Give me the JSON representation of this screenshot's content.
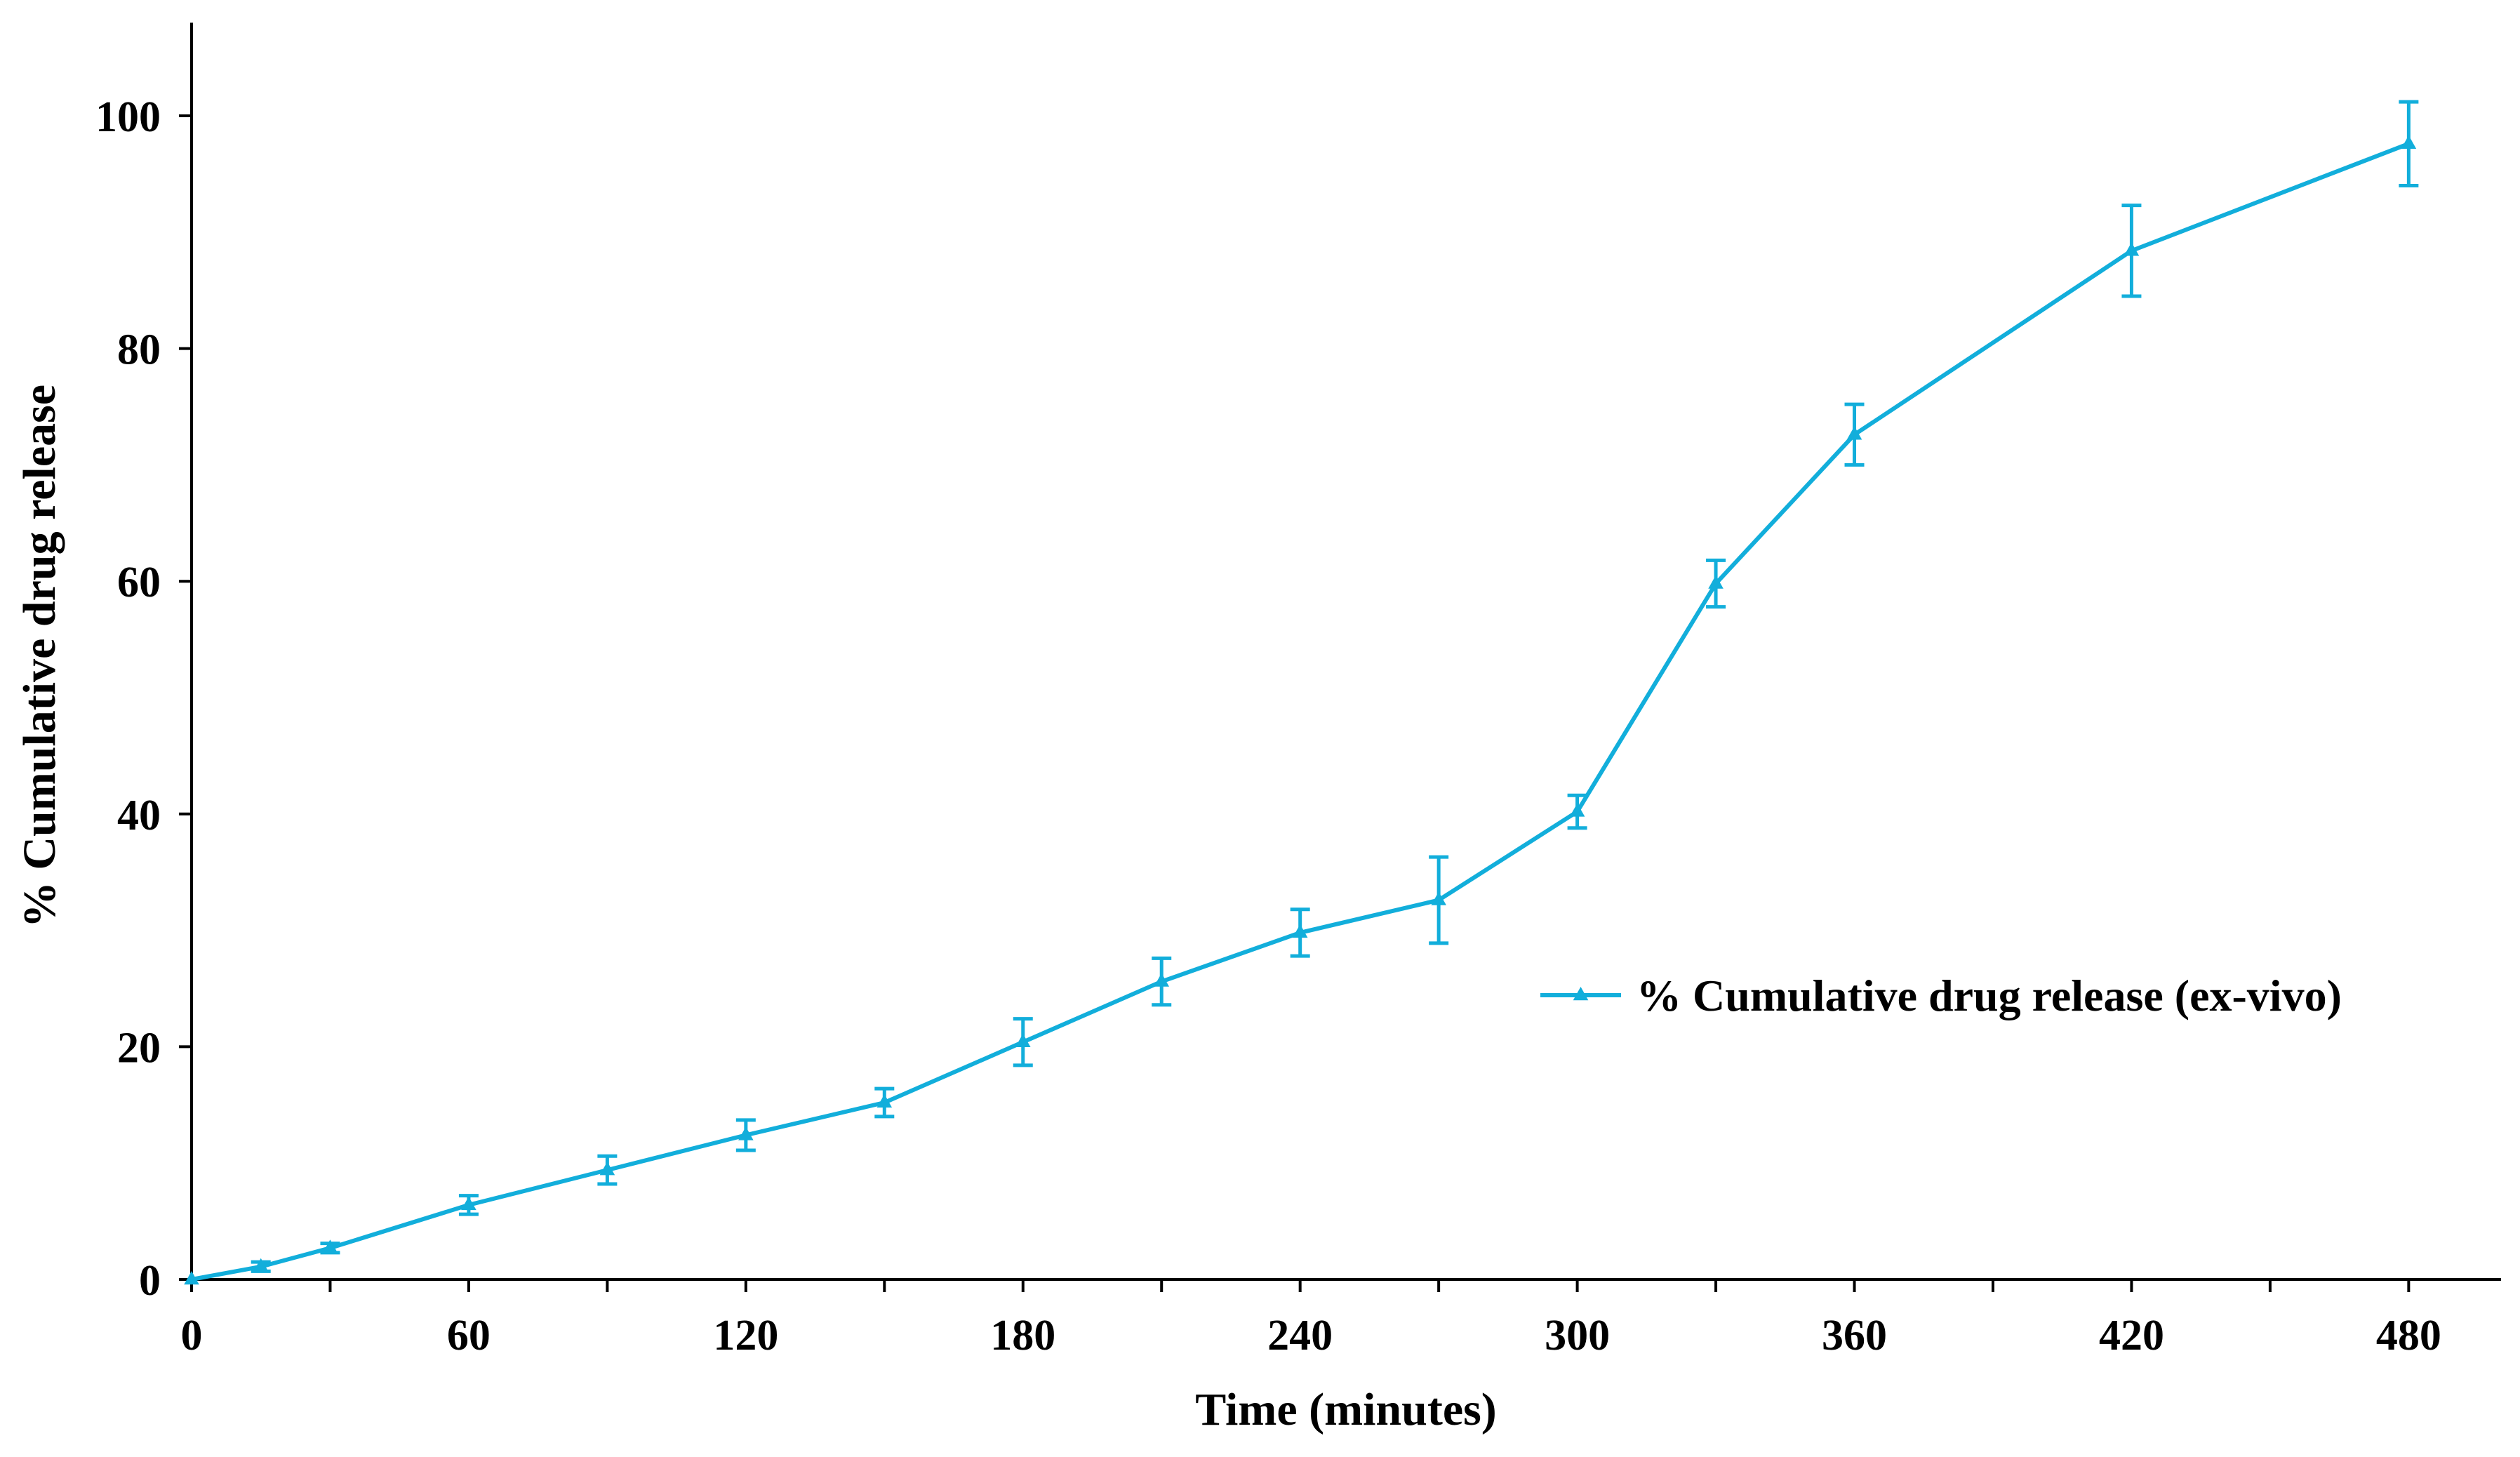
{
  "chart_data": {
    "type": "line",
    "title": "",
    "xlabel": "Time (minutes)",
    "ylabel": "% Cumulative drug release",
    "xlim": [
      0,
      500
    ],
    "ylim": [
      0,
      108
    ],
    "xticks": [
      0,
      60,
      120,
      180,
      240,
      300,
      360,
      420,
      480
    ],
    "yticks": [
      0,
      20,
      40,
      60,
      80,
      100
    ],
    "x_minor_step": 30,
    "grid": false,
    "legend_position": "middle-right",
    "series": [
      {
        "name": "% Cumulative drug release (ex-vivo)",
        "color": "#12aedb",
        "marker": "triangle",
        "x": [
          0,
          15,
          30,
          60,
          90,
          120,
          150,
          180,
          210,
          240,
          270,
          300,
          330,
          360,
          420,
          480
        ],
        "y": [
          0,
          1.1,
          2.7,
          6.4,
          9.4,
          12.4,
          15.2,
          20.4,
          25.6,
          29.8,
          32.6,
          40.2,
          59.8,
          72.6,
          88.4,
          97.6
        ],
        "error": [
          0,
          0.4,
          0.4,
          0.8,
          1.2,
          1.3,
          1.2,
          2.0,
          2.0,
          2.0,
          3.7,
          1.4,
          2.0,
          2.6,
          3.9,
          3.6
        ]
      }
    ]
  }
}
